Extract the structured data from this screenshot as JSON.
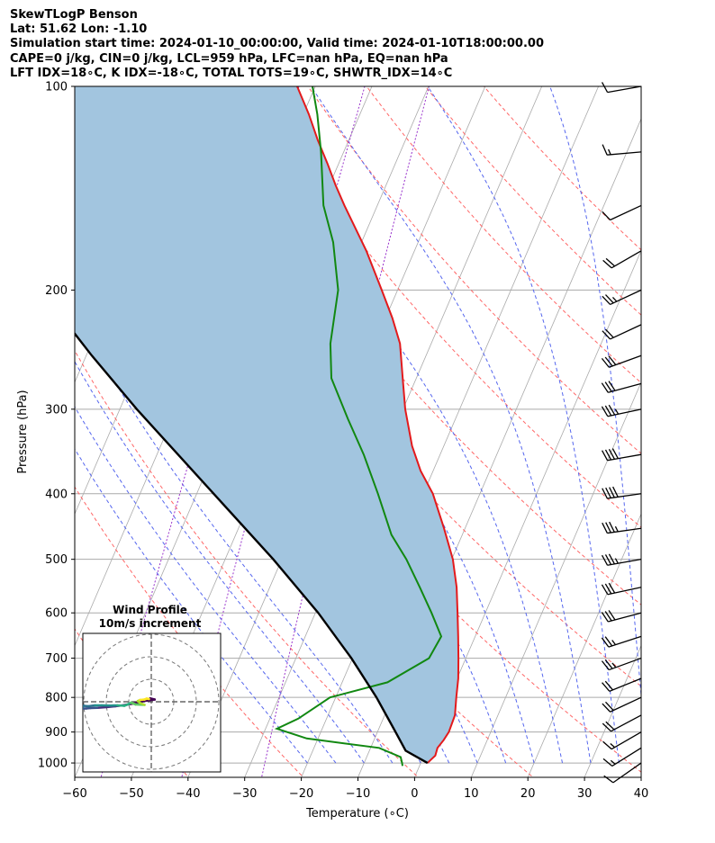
{
  "header": {
    "line1": "SkewTLogP Benson",
    "line2": "Lat: 51.62   Lon: -1.10",
    "line3": "Simulation start time: 2024-01-10_00:00:00, Valid time: 2024-01-10T18:00:00.00",
    "line4": "CAPE=0 j/kg, CIN=0 j/kg, LCL=959 hPa, LFC=nan hPa, EQ=nan hPa",
    "line5": "LFT IDX=18∘C, K IDX=-18∘C, TOTAL TOTS=19∘C, SHWTR_IDX=14∘C"
  },
  "colors": {
    "temperature": "#e31a1c",
    "dewpoint": "#118811",
    "parcel": "#000000",
    "shade": "#a2c5df",
    "dry_adiabat": "#ff6666",
    "moist_adiabat": "#5566ee",
    "mixing_ratio": "#9933cc",
    "isotherm": "#aaaaaa"
  },
  "chart_data": {
    "type": "skewt",
    "xlabel": "Temperature (∘C)",
    "ylabel": "Pressure (hPa)",
    "xlim": [
      -60,
      40
    ],
    "ylim": [
      1050,
      100
    ],
    "x_ticks": [
      -60,
      -50,
      -40,
      -30,
      -20,
      -10,
      0,
      10,
      20,
      30,
      40
    ],
    "x_tick_labels": [
      "−60",
      "−50",
      "−40",
      "−30",
      "−20",
      "−10",
      "0",
      "10",
      "20",
      "30",
      "40"
    ],
    "y_ticks": [
      100,
      200,
      300,
      400,
      500,
      600,
      700,
      800,
      900,
      1000
    ],
    "grid": true,
    "temperature": [
      {
        "p": 1000,
        "t": 1.2
      },
      {
        "p": 990,
        "t": 1.5
      },
      {
        "p": 975,
        "t": 2.0
      },
      {
        "p": 950,
        "t": 1.8
      },
      {
        "p": 925,
        "t": 2.3
      },
      {
        "p": 900,
        "t": 2.6
      },
      {
        "p": 850,
        "t": 2.4
      },
      {
        "p": 800,
        "t": 1.3
      },
      {
        "p": 750,
        "t": 0.2
      },
      {
        "p": 700,
        "t": -1.3
      },
      {
        "p": 650,
        "t": -3.0
      },
      {
        "p": 600,
        "t": -4.9
      },
      {
        "p": 550,
        "t": -7.0
      },
      {
        "p": 500,
        "t": -9.8
      },
      {
        "p": 450,
        "t": -13.7
      },
      {
        "p": 400,
        "t": -18.3
      },
      {
        "p": 370,
        "t": -22.2
      },
      {
        "p": 340,
        "t": -25.6
      },
      {
        "p": 300,
        "t": -29.6
      },
      {
        "p": 270,
        "t": -32.4
      },
      {
        "p": 240,
        "t": -35.5
      },
      {
        "p": 220,
        "t": -38.8
      },
      {
        "p": 200,
        "t": -42.8
      },
      {
        "p": 175,
        "t": -48.5
      },
      {
        "p": 150,
        "t": -55.8
      },
      {
        "p": 140,
        "t": -58.9
      },
      {
        "p": 130,
        "t": -62.0
      },
      {
        "p": 120,
        "t": -65.5
      },
      {
        "p": 110,
        "t": -69.0
      },
      {
        "p": 100,
        "t": -73.2
      }
    ],
    "dewpoint": [
      {
        "p": 1010,
        "t": -3.0
      },
      {
        "p": 1000,
        "t": -3.3
      },
      {
        "p": 980,
        "t": -4.0
      },
      {
        "p": 950,
        "t": -8.5
      },
      {
        "p": 920,
        "t": -22.0
      },
      {
        "p": 890,
        "t": -28.0
      },
      {
        "p": 860,
        "t": -25.0
      },
      {
        "p": 800,
        "t": -21.0
      },
      {
        "p": 760,
        "t": -12.0
      },
      {
        "p": 700,
        "t": -6.5
      },
      {
        "p": 650,
        "t": -6.0
      },
      {
        "p": 600,
        "t": -9.5
      },
      {
        "p": 550,
        "t": -13.5
      },
      {
        "p": 500,
        "t": -18.0
      },
      {
        "p": 460,
        "t": -22.5
      },
      {
        "p": 400,
        "t": -28.0
      },
      {
        "p": 350,
        "t": -33.5
      },
      {
        "p": 310,
        "t": -39.0
      },
      {
        "p": 270,
        "t": -45.0
      },
      {
        "p": 240,
        "t": -47.8
      },
      {
        "p": 200,
        "t": -50.5
      },
      {
        "p": 170,
        "t": -55.0
      },
      {
        "p": 150,
        "t": -59.5
      },
      {
        "p": 125,
        "t": -64.0
      },
      {
        "p": 110,
        "t": -67.5
      },
      {
        "p": 100,
        "t": -70.5
      }
    ],
    "parcel": [
      {
        "p": 1000,
        "t": 1.2
      },
      {
        "p": 959,
        "t": -3.6
      },
      {
        "p": 900,
        "t": -6.8
      },
      {
        "p": 850,
        "t": -9.7
      },
      {
        "p": 800,
        "t": -12.8
      },
      {
        "p": 700,
        "t": -20.2
      },
      {
        "p": 600,
        "t": -29.5
      },
      {
        "p": 500,
        "t": -41.5
      },
      {
        "p": 400,
        "t": -57.0
      },
      {
        "p": 300,
        "t": -77.0
      },
      {
        "p": 250,
        "t": -89.0
      },
      {
        "p": 200,
        "t": -103.0
      },
      {
        "p": 150,
        "t": -119.0
      },
      {
        "p": 100,
        "t": -139.0
      }
    ],
    "wind_barbs": [
      {
        "p": 100,
        "dir": 260,
        "spd": 12
      },
      {
        "p": 125,
        "dir": 265,
        "spd": 18
      },
      {
        "p": 150,
        "dir": 245,
        "spd": 14
      },
      {
        "p": 175,
        "dir": 240,
        "spd": 20
      },
      {
        "p": 200,
        "dir": 245,
        "spd": 28
      },
      {
        "p": 225,
        "dir": 245,
        "spd": 24
      },
      {
        "p": 250,
        "dir": 250,
        "spd": 30
      },
      {
        "p": 275,
        "dir": 255,
        "spd": 34
      },
      {
        "p": 300,
        "dir": 258,
        "spd": 38
      },
      {
        "p": 350,
        "dir": 260,
        "spd": 42
      },
      {
        "p": 400,
        "dir": 262,
        "spd": 40
      },
      {
        "p": 450,
        "dir": 262,
        "spd": 38
      },
      {
        "p": 500,
        "dir": 260,
        "spd": 36
      },
      {
        "p": 550,
        "dir": 258,
        "spd": 34
      },
      {
        "p": 600,
        "dir": 255,
        "spd": 30
      },
      {
        "p": 650,
        "dir": 252,
        "spd": 28
      },
      {
        "p": 700,
        "dir": 250,
        "spd": 26
      },
      {
        "p": 750,
        "dir": 248,
        "spd": 24
      },
      {
        "p": 800,
        "dir": 245,
        "spd": 22
      },
      {
        "p": 850,
        "dir": 242,
        "spd": 20
      },
      {
        "p": 900,
        "dir": 240,
        "spd": 18
      },
      {
        "p": 950,
        "dir": 238,
        "spd": 16
      },
      {
        "p": 1000,
        "dir": 235,
        "spd": 12
      }
    ],
    "hodograph": {
      "title": "Wind Profile",
      "subtitle": "10m/s increment",
      "rings": [
        10,
        20,
        30
      ],
      "points": [
        {
          "u": -0.5,
          "v": 1.5
        },
        {
          "u": 1.5,
          "v": 1.0
        },
        {
          "u": -4,
          "v": 0.2
        },
        {
          "u": -8,
          "v": -0.8
        },
        {
          "u": -12,
          "v": -1.5
        },
        {
          "u": -16,
          "v": -2.0
        },
        {
          "u": -20,
          "v": -2.4
        },
        {
          "u": -24,
          "v": -2.7
        },
        {
          "u": -27,
          "v": -2.8
        },
        {
          "u": -29,
          "v": -3.0
        },
        {
          "u": -31,
          "v": -3.0
        },
        {
          "u": -30,
          "v": -1.8
        },
        {
          "u": -28,
          "v": -2.0
        },
        {
          "u": -25,
          "v": -1.6
        },
        {
          "u": -22,
          "v": -1.6
        },
        {
          "u": -18,
          "v": -1.7
        },
        {
          "u": -15,
          "v": -1.6
        },
        {
          "u": -12,
          "v": -1.8
        },
        {
          "u": -10,
          "v": -1.0
        },
        {
          "u": -9,
          "v": -0.4
        },
        {
          "u": -7,
          "v": -1.2
        },
        {
          "u": -5,
          "v": -1.3
        },
        {
          "u": -3,
          "v": -1.4
        },
        {
          "u": -5,
          "v": -0.5
        },
        {
          "u": -6,
          "v": 0.3
        },
        {
          "u": -5,
          "v": 0.8
        },
        {
          "u": -3,
          "v": 1.0
        },
        {
          "u": -2,
          "v": 1.4
        },
        {
          "u": -1,
          "v": 1.2
        }
      ]
    }
  }
}
